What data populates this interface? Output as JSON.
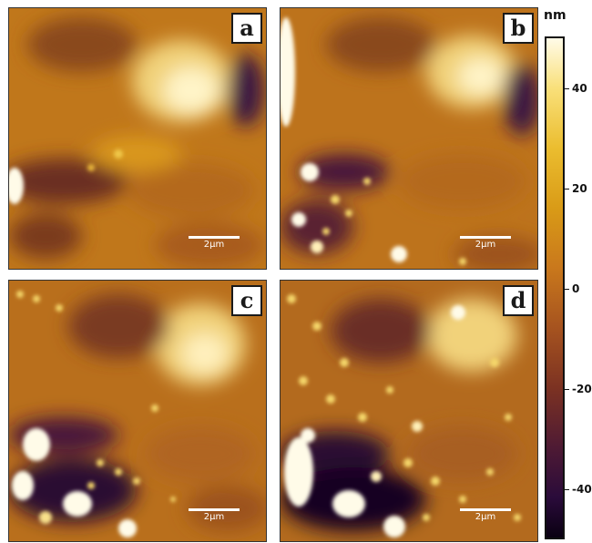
{
  "panels": [
    {
      "id": "a",
      "label": "a",
      "scale": "2μm"
    },
    {
      "id": "b",
      "label": "b",
      "scale": "2μm"
    },
    {
      "id": "c",
      "label": "c",
      "scale": "2μm"
    },
    {
      "id": "d",
      "label": "d",
      "scale": "2μm"
    }
  ],
  "colorbar": {
    "unit": "nm",
    "ticks": [
      "40",
      "20",
      "0",
      "-20",
      "-40"
    ],
    "colors": {
      "high": "#fffbe8",
      "mid_high": "#ebbd2f",
      "mid": "#c9781c",
      "mid_low": "#7c3222",
      "low": "#0a0012"
    }
  }
}
